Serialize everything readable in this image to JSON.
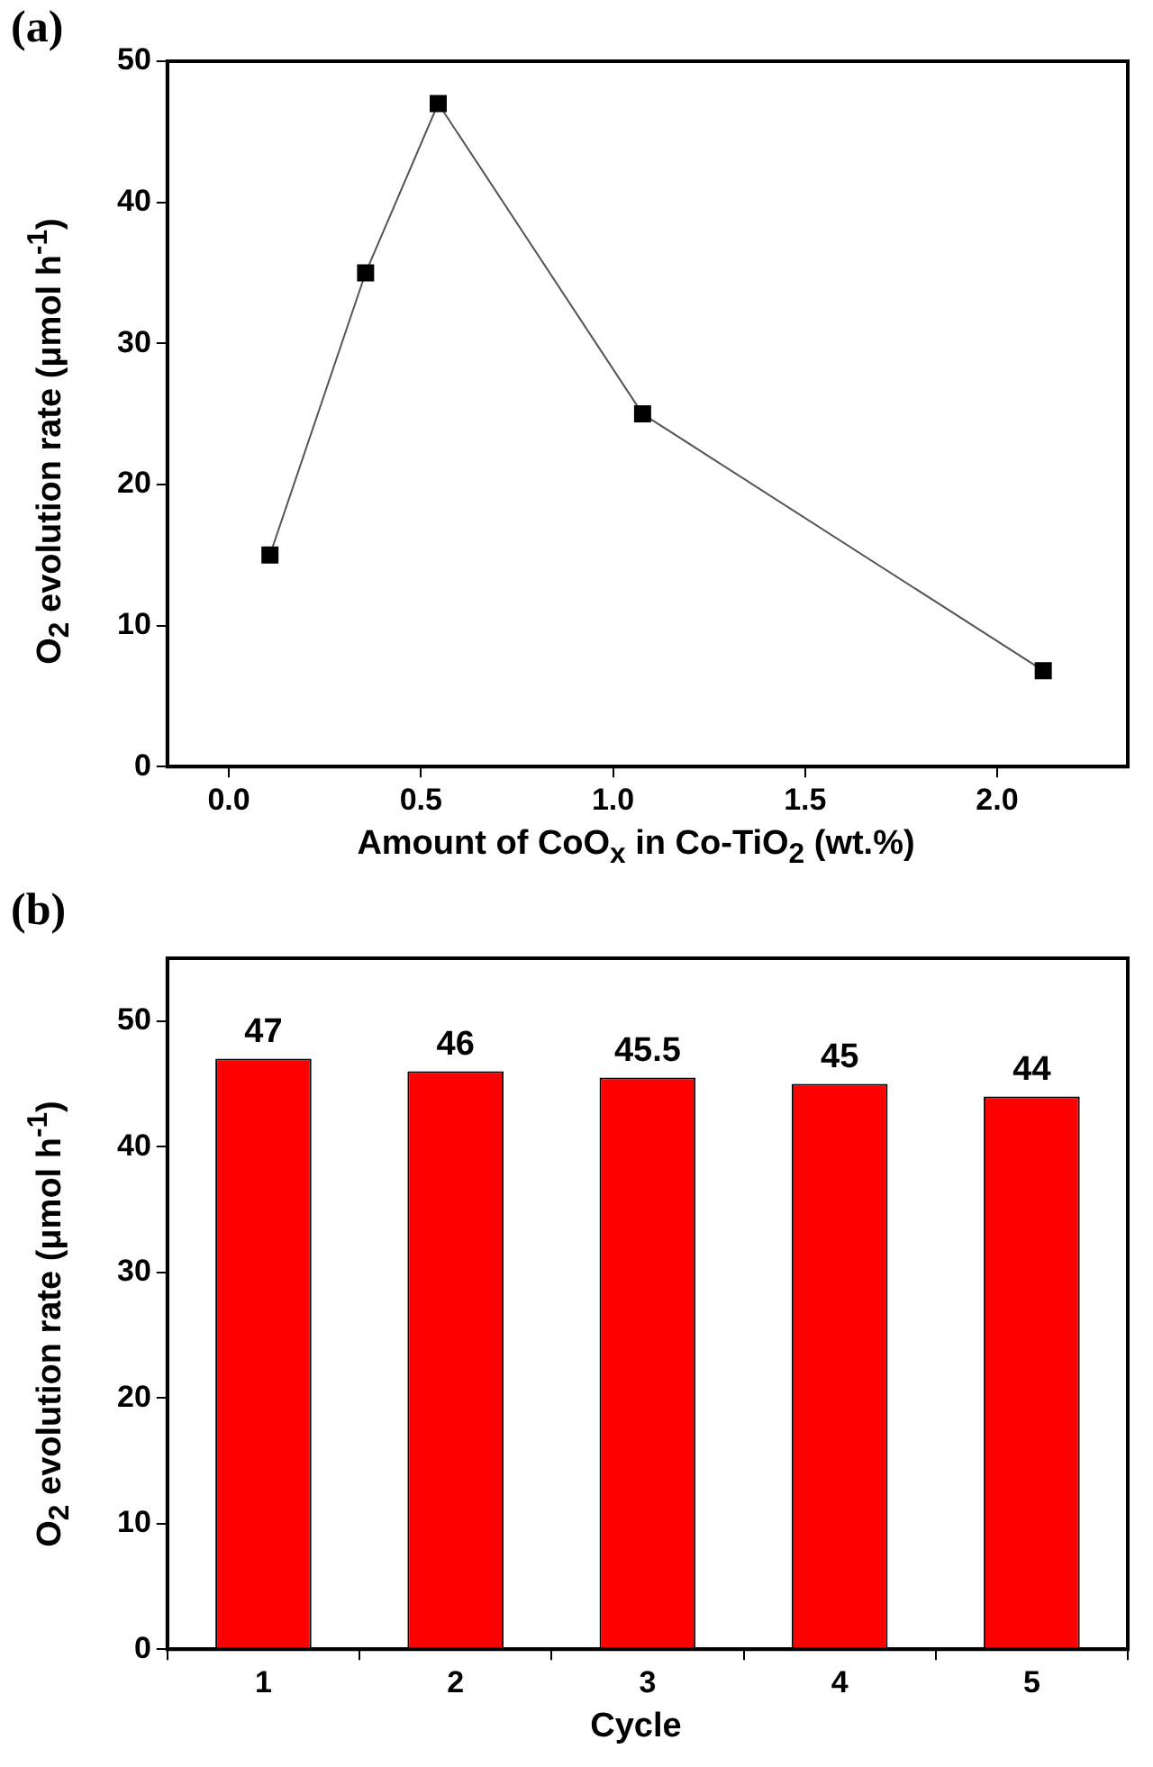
{
  "chart_data": [
    {
      "type": "line",
      "xlabel": "Amount of CoO$_{x}$ in Co-TiO$_{2}$ (wt.%)",
      "ylabel": "O$_{2}$ evolution rate (μmol h$^{-1}$)",
      "annotations": [
        "(a)"
      ],
      "x": [
        0.107,
        0.356,
        0.545,
        1.077,
        2.12
      ],
      "values": [
        15,
        35,
        47,
        25,
        6.8
      ],
      "color": "#000000",
      "marker": "square",
      "line_style": "solid",
      "xlim": [
        -0.16,
        2.34
      ],
      "xticks": [
        {
          "value": 0,
          "label": "0.0"
        },
        0.5,
        {
          "value": 1,
          "label": "1.0"
        },
        1.5,
        {
          "value": 2,
          "label": "2.0"
        }
      ],
      "ylim": [
        0,
        50
      ],
      "yticks": [
        0,
        10,
        20,
        30,
        40,
        50
      ]
    },
    {
      "type": "bar",
      "xlabel": "Cycle",
      "ylabel": "O$_{2}$ evolution rate (μmol h$^{-1}$)",
      "annotations": [
        "(b)"
      ],
      "categories": [
        "1",
        "2",
        "3",
        "4",
        "5"
      ],
      "values": [
        47,
        46,
        45.5,
        45,
        44
      ],
      "color": "#ff0000",
      "data_labels": true,
      "ylim": [
        0,
        55
      ],
      "yticks": [
        0,
        10,
        20,
        30,
        40,
        50
      ]
    }
  ]
}
